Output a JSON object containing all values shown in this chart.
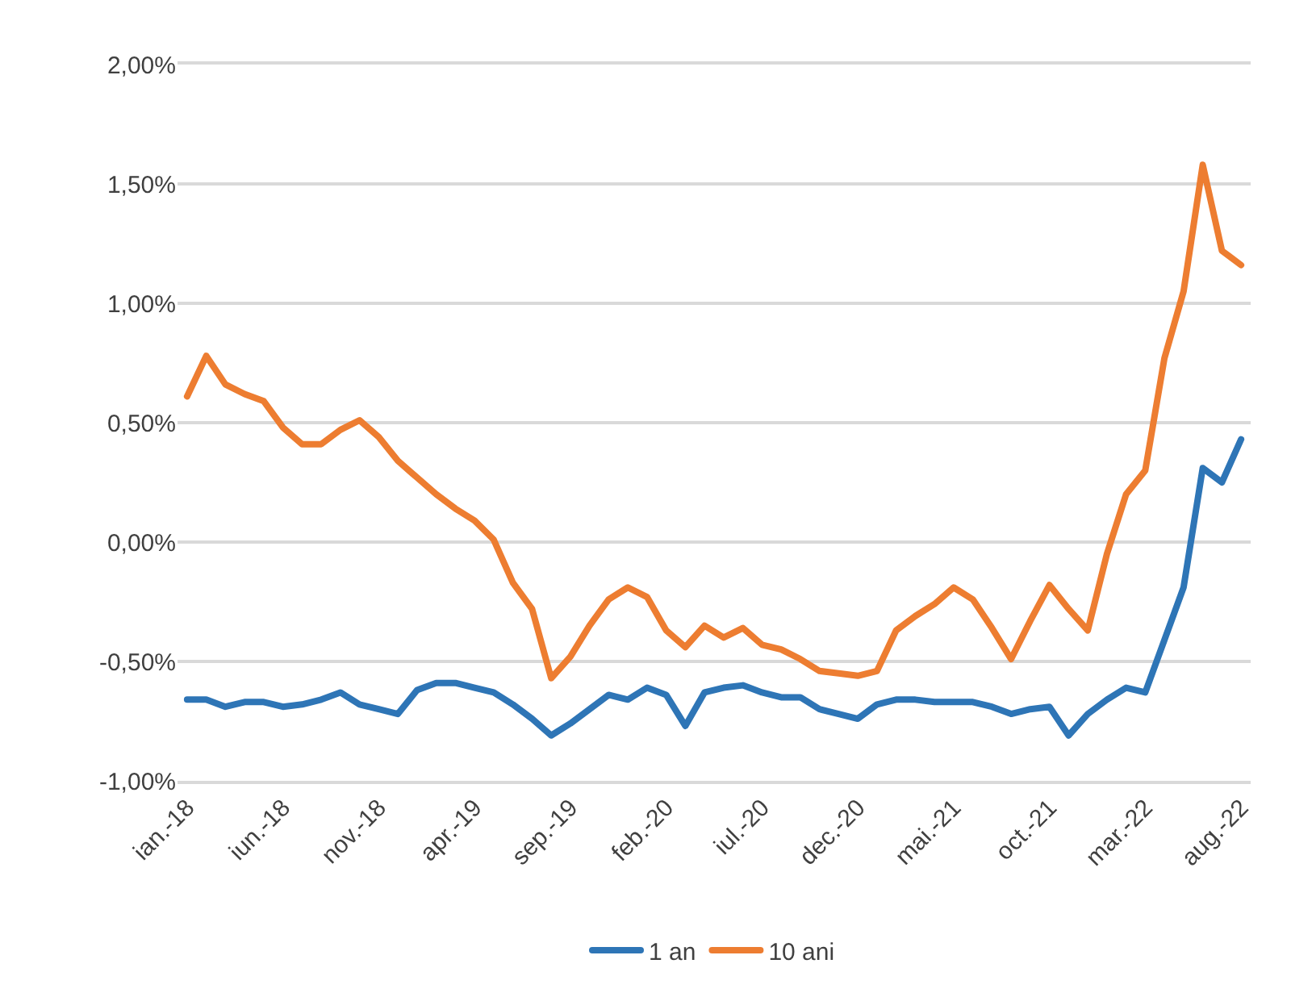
{
  "chart_data": {
    "type": "line",
    "categories": [
      "ian.-18",
      null,
      null,
      null,
      null,
      "iun.-18",
      null,
      null,
      null,
      null,
      "nov.-18",
      null,
      null,
      null,
      null,
      "apr.-19",
      null,
      null,
      null,
      null,
      "sep.-19",
      null,
      null,
      null,
      null,
      "feb.-20",
      null,
      null,
      null,
      null,
      "iul.-20",
      null,
      null,
      null,
      null,
      "dec.-20",
      null,
      null,
      null,
      null,
      "mai.-21",
      null,
      null,
      null,
      null,
      "oct.-21",
      null,
      null,
      null,
      null,
      "mar.-22",
      null,
      null,
      null,
      null,
      "aug.-22"
    ],
    "series": [
      {
        "name": "1 an",
        "color": "#2e75b6",
        "values": [
          -0.66,
          -0.66,
          -0.69,
          -0.67,
          -0.67,
          -0.69,
          -0.68,
          -0.66,
          -0.63,
          -0.68,
          -0.7,
          -0.72,
          -0.62,
          -0.59,
          -0.59,
          -0.61,
          -0.63,
          -0.68,
          -0.74,
          -0.81,
          -0.76,
          -0.7,
          -0.64,
          -0.66,
          -0.61,
          -0.64,
          -0.77,
          -0.63,
          -0.61,
          -0.6,
          -0.63,
          -0.65,
          -0.65,
          -0.7,
          -0.72,
          -0.74,
          -0.68,
          -0.66,
          -0.66,
          -0.67,
          -0.67,
          -0.67,
          -0.69,
          -0.72,
          -0.7,
          -0.69,
          -0.81,
          -0.72,
          -0.66,
          -0.61,
          -0.63,
          -0.41,
          -0.19,
          0.31,
          0.25,
          0.43
        ]
      },
      {
        "name": "10 ani",
        "color": "#ed7d31",
        "values": [
          0.61,
          0.78,
          0.66,
          0.62,
          0.59,
          0.48,
          0.41,
          0.41,
          0.47,
          0.51,
          0.44,
          0.34,
          0.27,
          0.2,
          0.14,
          0.09,
          0.01,
          -0.17,
          -0.28,
          -0.57,
          -0.48,
          -0.35,
          -0.24,
          -0.19,
          -0.23,
          -0.37,
          -0.44,
          -0.35,
          -0.4,
          -0.36,
          -0.43,
          -0.45,
          -0.49,
          -0.54,
          -0.55,
          -0.56,
          -0.54,
          -0.37,
          -0.31,
          -0.26,
          -0.19,
          -0.24,
          -0.36,
          -0.49,
          -0.33,
          -0.18,
          -0.28,
          -0.37,
          -0.05,
          0.2,
          0.3,
          0.77,
          1.05,
          1.58,
          1.22,
          1.16
        ]
      }
    ],
    "ylim": [
      -1,
      2
    ],
    "yticks": [
      {
        "value": -1,
        "label": "-1,00%"
      },
      {
        "value": -0.5,
        "label": "-0,50%"
      },
      {
        "value": 0,
        "label": "0,00%"
      },
      {
        "value": 0.5,
        "label": "0,50%"
      },
      {
        "value": 1,
        "label": "1,00%"
      },
      {
        "value": 1.5,
        "label": "1,50%"
      },
      {
        "value": 2,
        "label": "2,00%"
      }
    ],
    "grid": "y",
    "legend": "bottom",
    "marker": "none",
    "line_style": "solid"
  }
}
